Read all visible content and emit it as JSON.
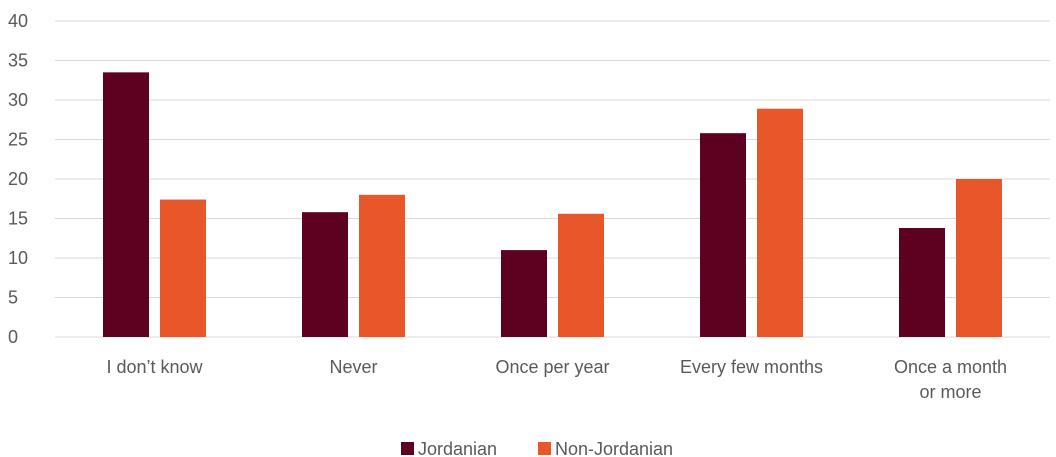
{
  "chart_data": {
    "type": "bar",
    "title": "",
    "xlabel": "",
    "ylabel": "",
    "ylim": [
      0,
      40
    ],
    "yticks": [
      0,
      5,
      10,
      15,
      20,
      25,
      30,
      35,
      40
    ],
    "grid": true,
    "legend_position": "bottom",
    "categories": [
      [
        "I don’t know"
      ],
      [
        "Never"
      ],
      [
        "Once per year"
      ],
      [
        "Every few months"
      ],
      [
        "Once a month",
        "or more"
      ]
    ],
    "series": [
      {
        "name": "Jordanian",
        "color": "#5e0020",
        "values": [
          33.5,
          15.8,
          11.0,
          25.8,
          13.8
        ]
      },
      {
        "name": "Non-Jordanian",
        "color": "#e8572a",
        "values": [
          17.4,
          18.0,
          15.6,
          28.9,
          20.0
        ]
      }
    ]
  }
}
